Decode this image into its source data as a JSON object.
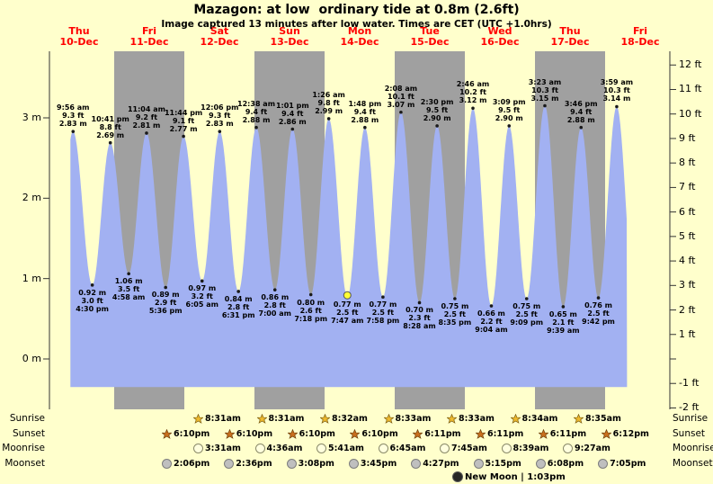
{
  "chart_data": {
    "type": "area",
    "title": "Mazagon: at low  ordinary tide at 0.8m (2.6ft)",
    "subtitle": "Image captured 13 minutes after low water. Times are CET (UTC +1.0hrs)",
    "legend": "none",
    "grid": "off",
    "ylim_m": [
      -0.35,
      3.85
    ],
    "baseline_m": -0.35,
    "x_axis": {
      "days": [
        {
          "dow": "Thu",
          "date": "10-Dec",
          "shaded": false
        },
        {
          "dow": "Fri",
          "date": "11-Dec",
          "shaded": true
        },
        {
          "dow": "Sat",
          "date": "12-Dec",
          "shaded": false
        },
        {
          "dow": "Sun",
          "date": "13-Dec",
          "shaded": true
        },
        {
          "dow": "Mon",
          "date": "14-Dec",
          "shaded": false
        },
        {
          "dow": "Tue",
          "date": "15-Dec",
          "shaded": true
        },
        {
          "dow": "Wed",
          "date": "16-Dec",
          "shaded": false
        },
        {
          "dow": "Thu",
          "date": "17-Dec",
          "shaded": true
        },
        {
          "dow": "Fri",
          "date": "18-Dec",
          "shaded": false
        }
      ]
    },
    "y_axis_left": {
      "unit": "m",
      "ticks": [
        {
          "v": 3,
          "label": "3 m"
        },
        {
          "v": 2,
          "label": "2 m"
        },
        {
          "v": 1,
          "label": "1 m"
        },
        {
          "v": 0,
          "label": "0 m"
        }
      ]
    },
    "y_axis_right": {
      "unit": "ft",
      "ticks": [
        {
          "v": 12,
          "label": "12 ft"
        },
        {
          "v": 11,
          "label": "11 ft"
        },
        {
          "v": 10,
          "label": "10 ft"
        },
        {
          "v": 9,
          "label": "9 ft"
        },
        {
          "v": 8,
          "label": "8 ft"
        },
        {
          "v": 7,
          "label": "7 ft"
        },
        {
          "v": 6,
          "label": "6 ft"
        },
        {
          "v": 5,
          "label": "5 ft"
        },
        {
          "v": 4,
          "label": "4 ft"
        },
        {
          "v": 3,
          "label": "3 ft"
        },
        {
          "v": 2,
          "label": "2 ft"
        },
        {
          "v": 1,
          "label": "1 ft"
        },
        {
          "v": -1,
          "label": "-1 ft"
        },
        {
          "v": -2,
          "label": "-2 ft"
        }
      ]
    },
    "tides": [
      {
        "kind": "high",
        "time": "9:56 am",
        "ft": "9.3 ft",
        "m": "2.83 m",
        "h": 2.83,
        "t": 9.93
      },
      {
        "kind": "low",
        "time": "4:30 pm",
        "ft": "3.0 ft",
        "m": "0.92 m",
        "h": 0.92,
        "t": 16.5
      },
      {
        "kind": "high",
        "time": "10:41 pm",
        "ft": "8.8 ft",
        "m": "2.69 m",
        "h": 2.69,
        "t": 22.68
      },
      {
        "kind": "low",
        "time": "4:58 am",
        "ft": "3.5 ft",
        "m": "1.06 m",
        "h": 1.06,
        "t": 28.97
      },
      {
        "kind": "high",
        "time": "11:04 am",
        "ft": "9.2 ft",
        "m": "2.81 m",
        "h": 2.81,
        "t": 35.07
      },
      {
        "kind": "low",
        "time": "5:36 pm",
        "ft": "2.9 ft",
        "m": "0.89 m",
        "h": 0.89,
        "t": 41.6
      },
      {
        "kind": "high",
        "time": "11:44 pm",
        "ft": "9.1 ft",
        "m": "2.77 m",
        "h": 2.77,
        "t": 47.73
      },
      {
        "kind": "low",
        "time": "6:05 am",
        "ft": "3.2 ft",
        "m": "0.97 m",
        "h": 0.97,
        "t": 54.08
      },
      {
        "kind": "high",
        "time": "12:06 pm",
        "ft": "9.3 ft",
        "m": "2.83 m",
        "h": 2.83,
        "t": 60.1
      },
      {
        "kind": "low",
        "time": "6:31 pm",
        "ft": "2.8 ft",
        "m": "0.84 m",
        "h": 0.84,
        "t": 66.52
      },
      {
        "kind": "high",
        "time": "12:38 am",
        "ft": "9.4 ft",
        "m": "2.88 m",
        "h": 2.88,
        "t": 72.63
      },
      {
        "kind": "low",
        "time": "7:00 am",
        "ft": "2.8 ft",
        "m": "0.86 m",
        "h": 0.86,
        "t": 79.0
      },
      {
        "kind": "high",
        "time": "1:01 pm",
        "ft": "9.4 ft",
        "m": "2.86 m",
        "h": 2.86,
        "t": 85.02
      },
      {
        "kind": "low",
        "time": "7:18 pm",
        "ft": "2.6 ft",
        "m": "0.80 m",
        "h": 0.8,
        "t": 91.3
      },
      {
        "kind": "high",
        "time": "1:26 am",
        "ft": "9.8 ft",
        "m": "2.99 m",
        "h": 2.99,
        "t": 97.43
      },
      {
        "kind": "low",
        "time": "7:47 am",
        "ft": "2.5 ft",
        "m": "0.77 m",
        "h": 0.77,
        "t": 103.78,
        "marker": true
      },
      {
        "kind": "high",
        "time": "1:48 pm",
        "ft": "9.4 ft",
        "m": "2.88 m",
        "h": 2.88,
        "t": 109.8
      },
      {
        "kind": "low",
        "time": "7:58 pm",
        "ft": "2.5 ft",
        "m": "0.77 m",
        "h": 0.77,
        "t": 115.97
      },
      {
        "kind": "high",
        "time": "2:08 am",
        "ft": "10.1 ft",
        "m": "3.07 m",
        "h": 3.07,
        "t": 122.13
      },
      {
        "kind": "low",
        "time": "8:28 am",
        "ft": "2.3 ft",
        "m": "0.70 m",
        "h": 0.7,
        "t": 128.47
      },
      {
        "kind": "high",
        "time": "2:30 pm",
        "ft": "9.5 ft",
        "m": "2.90 m",
        "h": 2.9,
        "t": 134.5
      },
      {
        "kind": "low",
        "time": "8:35 pm",
        "ft": "2.5 ft",
        "m": "0.75 m",
        "h": 0.75,
        "t": 140.58
      },
      {
        "kind": "high",
        "time": "2:46 am",
        "ft": "10.2 ft",
        "m": "3.12 m",
        "h": 3.12,
        "t": 146.77
      },
      {
        "kind": "low",
        "time": "9:04 am",
        "ft": "2.2 ft",
        "m": "0.66 m",
        "h": 0.66,
        "t": 153.07
      },
      {
        "kind": "high",
        "time": "3:09 pm",
        "ft": "9.5 ft",
        "m": "2.90 m",
        "h": 2.9,
        "t": 159.15
      },
      {
        "kind": "low",
        "time": "9:09 pm",
        "ft": "2.5 ft",
        "m": "0.75 m",
        "h": 0.75,
        "t": 165.15
      },
      {
        "kind": "high",
        "time": "3:23 am",
        "ft": "10.3 ft",
        "m": "3.15 m",
        "h": 3.15,
        "t": 171.38
      },
      {
        "kind": "low",
        "time": "9:39 am",
        "ft": "2.1 ft",
        "m": "0.65 m",
        "h": 0.65,
        "t": 177.65
      },
      {
        "kind": "high",
        "time": "3:46 pm",
        "ft": "9.4 ft",
        "m": "2.88 m",
        "h": 2.88,
        "t": 183.77
      },
      {
        "kind": "low",
        "time": "9:42 pm",
        "ft": "2.5 ft",
        "m": "0.76 m",
        "h": 0.76,
        "t": 189.7
      },
      {
        "kind": "high",
        "time": "3:59 am",
        "ft": "10.3 ft",
        "m": "3.14 m",
        "h": 3.14,
        "t": 195.98
      }
    ],
    "colors": {
      "background": "#FFFFCC",
      "band": "#A0A0A0",
      "fill": "#A2B1F2",
      "day_label": "#FF0000",
      "dot": "#1A1A1A",
      "marker_fill": "#FFFF33",
      "marker_stroke": "#555555",
      "axis": "#333333"
    }
  },
  "astro": {
    "rows": [
      {
        "name": "Sunrise",
        "icon": "sunrise-star",
        "times": [
          "8:31am",
          "8:31am",
          "8:32am",
          "8:33am",
          "8:33am",
          "8:34am",
          "8:35am"
        ]
      },
      {
        "name": "Sunset",
        "icon": "sunset-star",
        "times": [
          "6:10pm",
          "6:10pm",
          "6:10pm",
          "6:10pm",
          "6:11pm",
          "6:11pm",
          "6:11pm",
          "6:12pm"
        ]
      },
      {
        "name": "Moonrise",
        "icon": "moonrise-circle",
        "times": [
          "3:31am",
          "4:36am",
          "5:41am",
          "6:45am",
          "7:45am",
          "8:39am",
          "9:27am"
        ]
      },
      {
        "name": "Moonset",
        "icon": "moonset-circle",
        "times": [
          "2:06pm",
          "2:36pm",
          "3:08pm",
          "3:45pm",
          "4:27pm",
          "5:15pm",
          "6:08pm",
          "7:05pm"
        ]
      }
    ],
    "moon_phase": "New Moon | 1:03pm"
  }
}
